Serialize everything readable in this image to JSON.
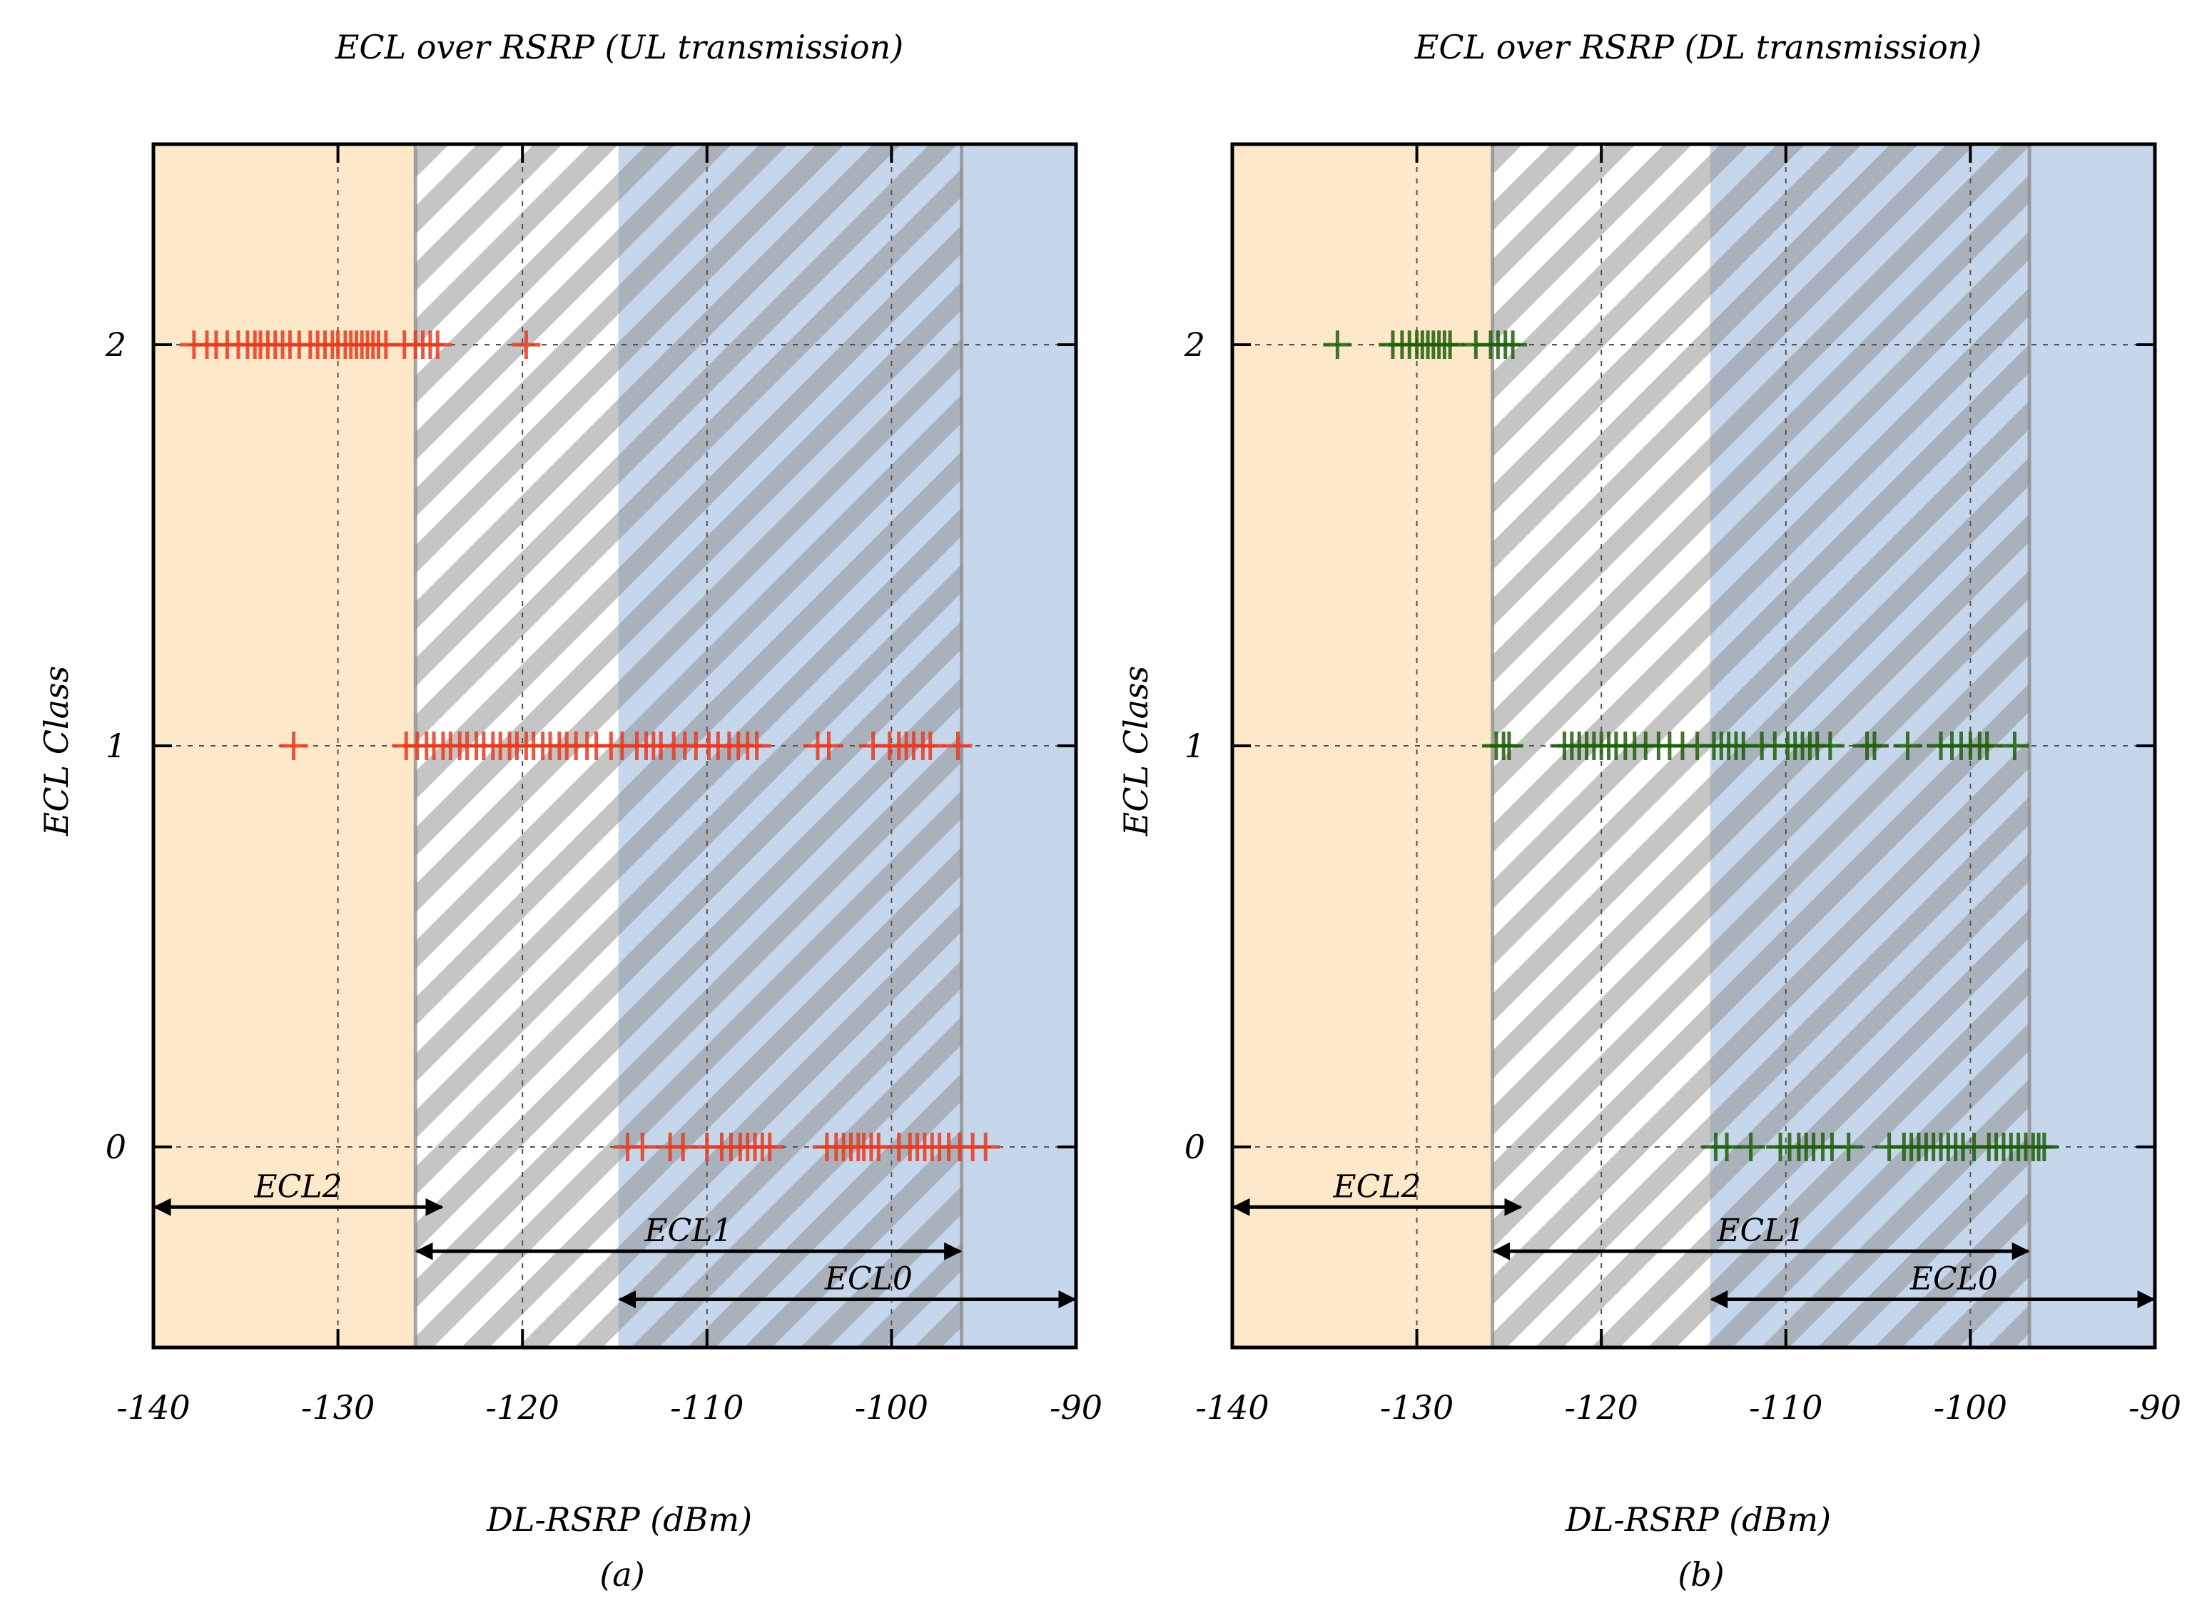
{
  "chart_data": [
    {
      "type": "scatter",
      "title": "ECL over RSRP (UL transmission)",
      "xlabel": "DL-RSRP (dBm)",
      "ylabel": "ECL Class",
      "caption": "(a)",
      "xlim": [
        -140,
        -90
      ],
      "ylim": [
        -0.5,
        2.5
      ],
      "xticks": [
        "-140",
        "-130",
        "-120",
        "-110",
        "-100",
        "-90"
      ],
      "yticks": [
        "0",
        "1",
        "2"
      ],
      "grid": true,
      "marker_color": "#e8391f",
      "regions": [
        {
          "name": "ECL2",
          "from": -140,
          "to": -124.3,
          "fill": "#fde9c9",
          "pattern": "none"
        },
        {
          "name": "ECL1",
          "from": -125.8,
          "to": -96.2,
          "fill": "#ffffff",
          "pattern": "hatch"
        },
        {
          "name": "ECL0",
          "from": -114.8,
          "to": -90,
          "fill": "#c6d7ec",
          "pattern": "none"
        }
      ],
      "range_arrows": [
        {
          "label": "ECL2",
          "from": -140,
          "to": -124.3,
          "level": -0.15
        },
        {
          "label": "ECL1",
          "from": -125.8,
          "to": -96.2,
          "level": -0.26
        },
        {
          "label": "ECL0",
          "from": -114.8,
          "to": -90,
          "level": -0.38
        }
      ],
      "series": [
        {
          "name": "ECL 2",
          "y": 2,
          "x": [
            -137.8,
            -137.1,
            -136.6,
            -136.0,
            -135.4,
            -134.9,
            -134.5,
            -134.2,
            -133.8,
            -133.4,
            -133.0,
            -132.6,
            -132.1,
            -131.5,
            -131.1,
            -130.7,
            -130.3,
            -130.0,
            -129.6,
            -129.3,
            -129.0,
            -128.7,
            -128.4,
            -128.1,
            -127.8,
            -127.4,
            -126.4,
            -125.8,
            -125.4,
            -125.0,
            -124.6,
            -119.8
          ]
        },
        {
          "name": "ECL 1",
          "y": 1,
          "x": [
            -132.4,
            -126.3,
            -125.7,
            -125.2,
            -124.8,
            -124.3,
            -123.9,
            -123.4,
            -123.0,
            -122.5,
            -122.1,
            -121.6,
            -121.2,
            -120.7,
            -120.3,
            -119.8,
            -119.4,
            -118.9,
            -118.5,
            -118.0,
            -117.6,
            -117.1,
            -116.5,
            -116.0,
            -115.2,
            -114.6,
            -113.8,
            -113.3,
            -112.9,
            -112.5,
            -111.8,
            -111.2,
            -110.6,
            -109.9,
            -109.4,
            -108.8,
            -108.3,
            -107.8,
            -107.3,
            -104.0,
            -103.4,
            -101.0,
            -100.1,
            -99.6,
            -99.2,
            -98.8,
            -98.3,
            -97.9,
            -96.4
          ]
        },
        {
          "name": "ECL 0",
          "y": 0,
          "x": [
            -114.3,
            -113.5,
            -112.0,
            -111.3,
            -110.0,
            -109.2,
            -108.7,
            -108.2,
            -107.8,
            -107.4,
            -107.0,
            -106.6,
            -103.5,
            -103.0,
            -102.6,
            -102.2,
            -101.8,
            -101.5,
            -101.1,
            -100.7,
            -99.6,
            -99.0,
            -98.6,
            -98.2,
            -97.8,
            -97.4,
            -96.9,
            -96.3,
            -95.6,
            -94.9
          ]
        }
      ]
    },
    {
      "type": "scatter",
      "title": "ECL over RSRP (DL transmission)",
      "xlabel": "DL-RSRP (dBm)",
      "ylabel": "ECL Class",
      "caption": "(b)",
      "xlim": [
        -140,
        -90
      ],
      "ylim": [
        -0.5,
        2.5
      ],
      "xticks": [
        "-140",
        "-130",
        "-120",
        "-110",
        "-100",
        "-90"
      ],
      "yticks": [
        "0",
        "1",
        "2"
      ],
      "grid": true,
      "marker_color": "#1f5e0a",
      "regions": [
        {
          "name": "ECL2",
          "from": -140,
          "to": -124.3,
          "fill": "#fde9c9",
          "pattern": "none"
        },
        {
          "name": "ECL1",
          "from": -125.9,
          "to": -96.8,
          "fill": "#ffffff",
          "pattern": "hatch"
        },
        {
          "name": "ECL0",
          "from": -114.1,
          "to": -90,
          "fill": "#c6d7ec",
          "pattern": "none"
        }
      ],
      "range_arrows": [
        {
          "label": "ECL2",
          "from": -140,
          "to": -124.3,
          "level": -0.15
        },
        {
          "label": "ECL1",
          "from": -125.9,
          "to": -96.8,
          "level": -0.26
        },
        {
          "label": "ECL0",
          "from": -114.1,
          "to": -90,
          "level": -0.38
        }
      ],
      "series": [
        {
          "name": "ECL 2",
          "y": 2,
          "x": [
            -134.3,
            -131.3,
            -130.8,
            -130.4,
            -130.0,
            -129.7,
            -129.4,
            -129.1,
            -128.8,
            -128.5,
            -128.2,
            -126.8,
            -126.0,
            -125.6,
            -125.2,
            -124.8
          ]
        },
        {
          "name": "ECL 1",
          "y": 1,
          "x": [
            -125.7,
            -125.3,
            -125.0,
            -122.0,
            -121.6,
            -121.2,
            -120.8,
            -120.4,
            -120.0,
            -119.6,
            -119.2,
            -118.7,
            -118.2,
            -117.6,
            -116.9,
            -116.3,
            -115.6,
            -114.8,
            -113.9,
            -113.5,
            -113.1,
            -112.7,
            -112.3,
            -111.3,
            -110.6,
            -109.9,
            -109.5,
            -109.1,
            -108.7,
            -108.3,
            -107.6,
            -105.6,
            -105.2,
            -103.4,
            -101.6,
            -101.0,
            -100.5,
            -100.0,
            -99.5,
            -99.1,
            -97.6
          ]
        },
        {
          "name": "ECL 0",
          "y": 0,
          "x": [
            -113.8,
            -113.2,
            -111.9,
            -110.3,
            -109.8,
            -109.3,
            -108.9,
            -108.5,
            -108.0,
            -107.5,
            -106.6,
            -104.4,
            -103.6,
            -103.2,
            -102.8,
            -102.4,
            -102.0,
            -101.6,
            -101.2,
            -100.8,
            -100.4,
            -99.8,
            -99.0,
            -98.6,
            -98.2,
            -97.8,
            -97.4,
            -97.0,
            -96.6,
            -96.3,
            -96.0
          ]
        }
      ]
    }
  ]
}
